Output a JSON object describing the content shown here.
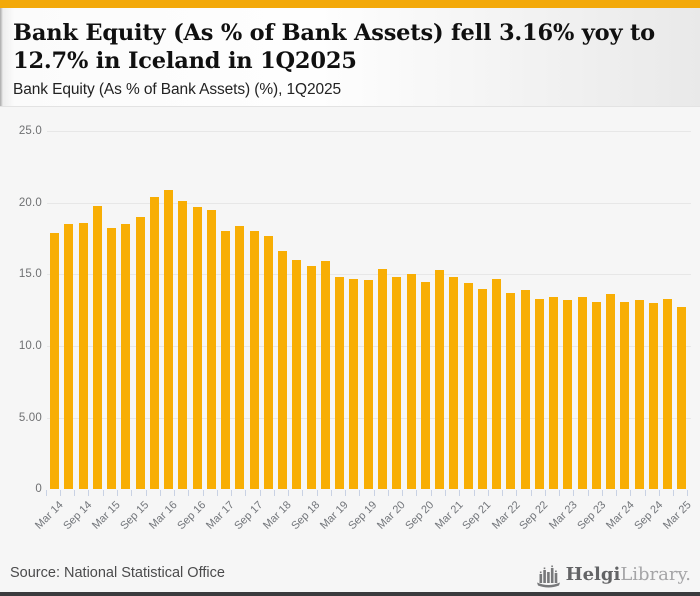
{
  "header": {
    "title": "Bank Equity (As % of Bank Assets) fell 3.16% yoy to 12.7% in Iceland in 1Q2025",
    "subtitle": "Bank Equity (As % of Bank Assets) (%), 1Q2025"
  },
  "chart_data": {
    "type": "bar",
    "title": "Bank Equity (As % of Bank Assets) fell 3.16% yoy to 12.7% in Iceland in 1Q2025",
    "subtitle": "Bank Equity (As % of Bank Assets) (%), 1Q2025",
    "categories": [
      "Mar 14",
      "Jun 14",
      "Sep 14",
      "Dec 14",
      "Mar 15",
      "Jun 15",
      "Sep 15",
      "Dec 15",
      "Mar 16",
      "Jun 16",
      "Sep 16",
      "Dec 16",
      "Mar 17",
      "Jun 17",
      "Sep 17",
      "Dec 17",
      "Mar 18",
      "Jun 18",
      "Sep 18",
      "Dec 18",
      "Mar 19",
      "Jun 19",
      "Sep 19",
      "Dec 19",
      "Mar 20",
      "Jun 20",
      "Sep 20",
      "Dec 20",
      "Mar 21",
      "Jun 21",
      "Sep 21",
      "Dec 21",
      "Mar 22",
      "Jun 22",
      "Sep 22",
      "Dec 22",
      "Mar 23",
      "Jun 23",
      "Sep 23",
      "Dec 23",
      "Mar 24",
      "Jun 24",
      "Sep 24",
      "Dec 24",
      "Mar 25"
    ],
    "values": [
      17.9,
      18.5,
      18.6,
      19.8,
      18.2,
      18.5,
      19.0,
      20.4,
      20.9,
      20.1,
      19.7,
      19.5,
      18.0,
      18.4,
      18.0,
      17.7,
      16.6,
      16.0,
      15.6,
      15.9,
      14.8,
      14.7,
      14.6,
      15.4,
      14.8,
      15.0,
      14.5,
      15.3,
      14.8,
      14.4,
      14.0,
      14.7,
      13.7,
      13.9,
      13.3,
      13.4,
      13.2,
      13.4,
      13.1,
      13.6,
      13.1,
      13.2,
      13.0,
      13.3,
      12.7
    ],
    "y_ticks": [
      {
        "label": "25.0",
        "value": 25
      },
      {
        "label": "20.0",
        "value": 20
      },
      {
        "label": "15.0",
        "value": 15
      },
      {
        "label": "10.0",
        "value": 10
      },
      {
        "label": "5.00",
        "value": 5
      },
      {
        "label": "0",
        "value": 0
      }
    ],
    "ylim": [
      0,
      25
    ],
    "x_label_every": 2,
    "bar_color": "#F8AE04",
    "grid": true,
    "legend": "none"
  },
  "footer": {
    "source": "Source: National Statistical Office",
    "logo": {
      "brand_primary": "Helgi",
      "brand_secondary": "Library."
    }
  },
  "colors": {
    "accent_bar": "#F3A90A",
    "bar": "#F8AE04",
    "chart_background": "#f6f6f6",
    "bottom_bar": "#3b3b3d"
  }
}
